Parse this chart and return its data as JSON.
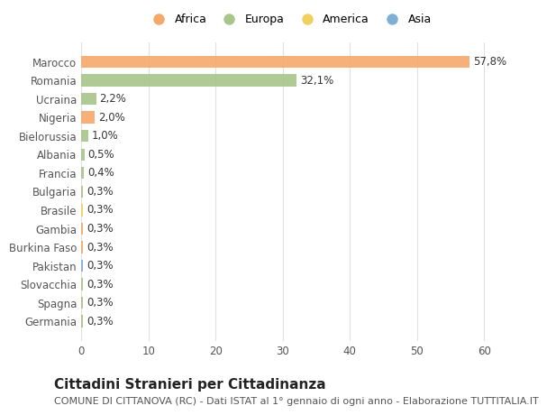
{
  "countries": [
    "Marocco",
    "Romania",
    "Ucraina",
    "Nigeria",
    "Bielorussia",
    "Albania",
    "Francia",
    "Bulgaria",
    "Brasile",
    "Gambia",
    "Burkina Faso",
    "Pakistan",
    "Slovacchia",
    "Spagna",
    "Germania"
  ],
  "values": [
    57.8,
    32.1,
    2.2,
    2.0,
    1.0,
    0.5,
    0.4,
    0.3,
    0.3,
    0.3,
    0.3,
    0.3,
    0.3,
    0.3,
    0.3
  ],
  "labels": [
    "57,8%",
    "32,1%",
    "2,2%",
    "2,0%",
    "1,0%",
    "0,5%",
    "0,4%",
    "0,3%",
    "0,3%",
    "0,3%",
    "0,3%",
    "0,3%",
    "0,3%",
    "0,3%",
    "0,3%"
  ],
  "colors": [
    "#F4A96B",
    "#A8C58A",
    "#A8C58A",
    "#F4A96B",
    "#A8C58A",
    "#A8C58A",
    "#A8C58A",
    "#A8C58A",
    "#F0D060",
    "#F4A96B",
    "#F4A96B",
    "#7EB0D5",
    "#A8C58A",
    "#A8C58A",
    "#A8C58A"
  ],
  "legend_labels": [
    "Africa",
    "Europa",
    "America",
    "Asia"
  ],
  "legend_colors": [
    "#F4A96B",
    "#A8C58A",
    "#F0D060",
    "#7EB0D5"
  ],
  "title": "Cittadini Stranieri per Cittadinanza",
  "subtitle": "COMUNE DI CITTANOVA (RC) - Dati ISTAT al 1° gennaio di ogni anno - Elaborazione TUTTITALIA.IT",
  "xlim": [
    0,
    62
  ],
  "xticks": [
    0,
    10,
    20,
    30,
    40,
    50,
    60
  ],
  "bg_color": "#ffffff",
  "grid_color": "#e0e0e0",
  "bar_height": 0.65,
  "label_fontsize": 8.5,
  "tick_fontsize": 8.5,
  "title_fontsize": 11,
  "subtitle_fontsize": 8
}
